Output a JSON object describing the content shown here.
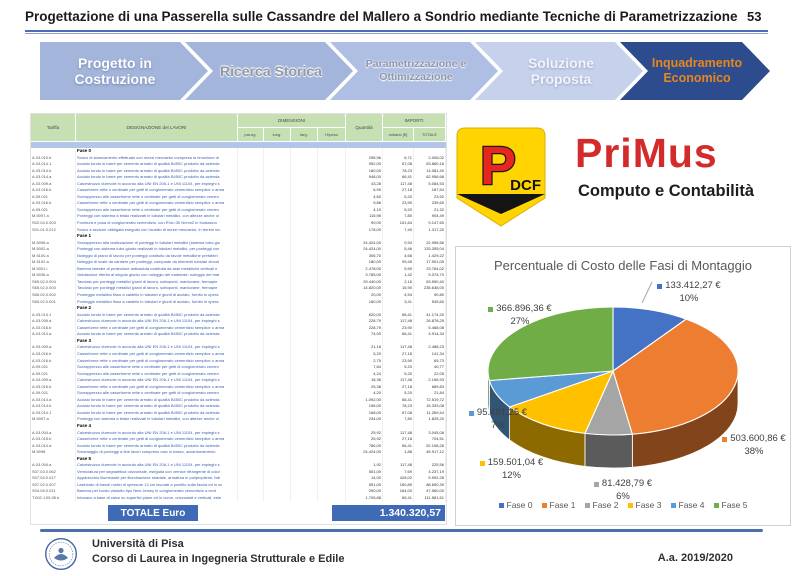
{
  "slide": {
    "title": "Progettazione di una Passerella sulle Cassandre del Mallero a Sondrio mediante Tecniche di Parametrizzazione",
    "page_number": "53",
    "footer": {
      "institution": "Università di Pisa",
      "course": "Corso di Laurea in Ingegneria Strutturale e Edile",
      "academic_year": "A.a. 2019/2020"
    }
  },
  "process_steps": [
    {
      "label": "Progetto in Costruzione"
    },
    {
      "label": "Ricerca Storica"
    },
    {
      "label": "Parametrizzazione e Ottimizzazione"
    },
    {
      "label": "Soluzione Proposta"
    },
    {
      "label": "Inquadramento Economico",
      "active": true
    }
  ],
  "primus": {
    "letter": "P",
    "badge": "DCF",
    "name": "PriMus",
    "tagline": "Computo e Contabilità"
  },
  "worksheet": {
    "columns": {
      "tariffa": "Tariffa",
      "designazione": "DESIGNAZIONE dei LAVORI",
      "dimensioni": "DIMENSIONI",
      "dim_sub": [
        "par.ug.",
        "lung.",
        "larg.",
        "H/peso"
      ],
      "quantita": "Quantità",
      "importi": "IMPORTI",
      "importi_sub": [
        "unitario [€]",
        "TOTALE"
      ]
    },
    "total_label": "TOTALE Euro",
    "total_value": "1.340.320,57",
    "rows": [
      "Fase 0",
      [
        "A.03.010.b",
        "Scavo di sbancamento effettuato con mezzi meccanici compresa la rimozione di",
        "298,96",
        "6,71",
        "2.006,02"
      ],
      [
        "A.03.014.1",
        "Acciaio tondo in barre per cemento armato di qualità B450C prodotto da azienda",
        "952,00",
        "67,08",
        "63.860,16"
      ],
      [
        "A.03.014.b",
        "Acciaio tondo in barre per cemento armato di qualità B450C prodotto da azienda",
        "180,00",
        "78,23",
        "14.081,40"
      ],
      [
        "A.03.014.a",
        "Acciaio tondo in barre per cemento armato di qualità B450C prodotto da azienda",
        "948,00",
        "66,41",
        "62.956,68"
      ],
      [
        "A.03.009.a",
        "Calcestruzzo durevole in accordo alla UNI EN 206-1 e UNI 11104, per impieghi s",
        "43,28",
        "117,48",
        "5.084,53"
      ],
      [
        "A.03.016.b",
        "Casseforme rette o centinate per getti di conglomerato cementizio semplice o arma",
        "6,90",
        "27,18",
        "187,54"
      ],
      [
        "A.09.021",
        "Sovrapprezzo alle casseforme rette o centinate per getti di conglomerato cemen",
        "4,60",
        "5,20",
        "23,92"
      ],
      [
        "A.03.016.b",
        "Casseforme rette o centinate per getti di conglomerato cementizio semplice o arma",
        "9,86",
        "23,90",
        "235,65"
      ],
      [
        "A.09.021",
        "Sovrapprezzo alle casseforme rette o centinate per getti di conglomerato cemen",
        "4,10",
        "5,20",
        "21,32"
      ],
      [
        "M.5097.a",
        "Ponteggi con sistema a telaio realizzati in tubolari metallici, con altezze anche ol",
        "115,96",
        "7,80",
        "904,49"
      ],
      [
        "S02.04.0.003",
        "Fornitura e posa di conglomerato cementizio, con R'ck=30 N/mm2 in fondazion",
        "90,00",
        "101,64",
        "9.147,60"
      ],
      [
        "S01.01.0.012",
        "Scavo a sezione obbligata eseguito con l'ausilio di mezzi meccanici, in terreni inc",
        "178,00",
        "7,40",
        "1.317,20"
      ],
      "Fase 1",
      [
        "M.5096.a",
        "Sovrapprezzo alla realizzazione di ponteggi in tubolari metallici (sistema tubo-giu",
        "24.424,00",
        "0,94",
        "22.958,56"
      ],
      [
        "M.5002.a",
        "Ponteggi con sistema tubo-giunto realizzati in tubolari metallici, per ponteggi con",
        "24.424,00",
        "5,46",
        "133.355,04"
      ],
      [
        "M.5100.a",
        "Noleggio di piano di lavoro per ponteggi costituito da tavole metalliche prefabbri",
        "306,70",
        "4,66",
        "1.429,22"
      ],
      [
        "M.5102.a",
        "Noleggio di scale da cantiere per ponteggi, composte da elementi tubolari zincat",
        "180,00",
        "99,45",
        "17.901,00"
      ],
      [
        "M.5001.i",
        "Barriera laterale di protezione anticaduta costituita da aste metalliche verticali e",
        "2.478,00",
        "9,59",
        "23.764,02"
      ],
      [
        "M.5036.a",
        "Valutazione riferita al singolo giunto con noleggio del materiale: noleggio del mat",
        "3.785,00",
        "1,42",
        "5.374,70"
      ],
      [
        "S65.02.0.004",
        "Tavolato per ponteggi metallici (piani di lavoro, sottoponti, mantovane, fermapie",
        "29.440,00",
        "2,16",
        "63.590,40"
      ],
      [
        "S65.02.0.003",
        "Tavolato per ponteggi metallici (piani di lavoro, sottoponti, mantovane, fermapie",
        "14.820,00",
        "15,90",
        "235.638,00"
      ],
      [
        "S65.02.0.002",
        "Ponteggio metallico fisso a castello in tubolari e giunti di acciaio, fornito in opera",
        "20,00",
        "4,54",
        "90,80"
      ],
      [
        "S65.02.0.001",
        "Ponteggio metallico fisso a castello in tubolari e giunti di acciaio, fornito in opera",
        "160,00",
        "3,41",
        "545,60"
      ],
      "Fase 2",
      [
        "A.03.014.1",
        "Acciaio tondo in barre per cemento armato di qualità B450C prodotto da azienda",
        "620,00",
        "66,41",
        "41.174,20"
      ],
      [
        "A.03.009.a",
        "Calcestruzzo durevole in accordo alla UNI EN 206-1 e UNI 11104, per impieghi s",
        "228,79",
        "117,48",
        "26.878,25"
      ],
      [
        "A.03.016.b",
        "Casseforme rette o centinate per getti di conglomerato cementizio semplice o arma",
        "228,79",
        "23,90",
        "5.468,08"
      ],
      [
        "A.03.014.a",
        "Acciaio tondo in barre per cemento armato di qualità B450C prodotto da azienda",
        "74,00",
        "66,41",
        "4.914,34"
      ],
      "Fase 3",
      [
        "A.03.009.a",
        "Calcestruzzo durevole in accordo alla UNI EN 206-1 e UNI 11104, per impieghi s",
        "21,18",
        "117,48",
        "2.488,23"
      ],
      [
        "A.03.016.b",
        "Casseforme rette o centinate per getti di conglomerato cementizio semplice o arma",
        "5,20",
        "27,18",
        "141,34"
      ],
      [
        "A.03.016.b",
        "Casseforme rette o centinate per getti di conglomerato cementizio semplice o arma",
        "2,75",
        "23,90",
        "65,73"
      ],
      [
        "A.09.021",
        "Sovrapprezzo alle casseforme rette o centinate per getti di conglomerato cemen",
        "7,84",
        "5,20",
        "40,77"
      ],
      [
        "A.09.021",
        "Sovrapprezzo alle casseforme rette o centinate per getti di conglomerato cemen",
        "4,24",
        "5,20",
        "22,05"
      ],
      [
        "A.03.009.a",
        "Calcestruzzo durevole in accordo alla UNI EN 206-1 e UNI 11104, per impieghi s",
        "18,36",
        "117,48",
        "2.156,93"
      ],
      [
        "A.03.016.b",
        "Casseforme rette o centinate per getti di conglomerato cementizio semplice o arma",
        "25,38",
        "27,18",
        "689,83"
      ],
      [
        "A.09.021",
        "Sovrapprezzo alle casseforme rette o centinate per getti di conglomerato cemen",
        "4,20",
        "5,20",
        "21,84"
      ],
      [
        "A.03.014.a",
        "Acciaio tondo in barre per cemento armato di qualità B450C prodotto da azienda",
        "1.092,00",
        "66,41",
        "72.519,72"
      ],
      [
        "A.03.014.b",
        "Acciaio tondo in barre per cemento armato di qualità B450C prodotto da azienda",
        "196,00",
        "78,23",
        "15.333,08"
      ],
      [
        "A.03.014.1",
        "Acciaio tondo in barre per cemento armato di qualità B450C prodotto da azienda",
        "168,00",
        "67,08",
        "11.269,44"
      ],
      [
        "M.5097.a",
        "Ponteggi con sistema a telaio realizzati in tubolari metallici, con altezze anche ol",
        "234,00",
        "7,80",
        "1.825,20"
      ],
      "Fase 4",
      [
        "A.03.004.a",
        "Calcestruzzo durevole in accordo alla UNI EN 206-1 e UNI 11104, per impieghi s",
        "25,92",
        "117,48",
        "3.045,08"
      ],
      [
        "A.03.015.b",
        "Casseforme rette o centinate per getti di conglomerato cementizio semplice o arma",
        "25,92",
        "27,18",
        "704,51"
      ],
      [
        "A.03.014.a",
        "Acciaio tondo in barre per cemento armato di qualità B450C prodotto da azienda",
        "786,00",
        "66,41",
        "52.198,26"
      ],
      [
        "M.5098",
        "Smontaggio di ponteggi a fine lavori compreso calo in basso, accantonamento",
        "24.424,00",
        "1,88",
        "45.917,12"
      ],
      "Fase 5",
      [
        "A.03.004.a",
        "Calcestruzzo durevole in accordo alla UNI EN 206-1 e UNI 11104, per impieghi s",
        "1,92",
        "117,48",
        "225,56"
      ],
      [
        "S07.03.0.062",
        "Verniciatura per segnaletica orizzontale, eseguita con vernice rifrangente di color",
        "551,00",
        "7,69",
        "4.237,19"
      ],
      [
        "S07.04.0.017",
        "Apparecchio illuminante per illuminazione stradale, armatura in polipropilene, fab",
        "14,00",
        "428,02",
        "5.992,28"
      ],
      [
        "S07.02.0.007",
        "Lastricato di basoli rustici di spessore 12 cm lavorati a puntillo sulla faccia ed in sc",
        "551,00",
        "160,89",
        "88.650,39"
      ],
      [
        "S04.05.0.011",
        "Barriera per bordo viadotto tipo New Jersey in conglomerato cementizio a vent",
        "290,00",
        "164,00",
        "47.560,00"
      ],
      [
        "T.002.J.05.05.b",
        "Intonaco a base di calce su superfici piane ed in curve, orizzontali e verticali, este",
        "1.705,88",
        "65,41",
        "111.581,61"
      ]
    ]
  },
  "chart_data": {
    "type": "pie",
    "style": "3d",
    "title": "Percentuale di Costo delle Fasi di Montaggio",
    "legend_position": "bottom",
    "categories": [
      "Fase 0",
      "Fase 1",
      "Fase 2",
      "Fase 3",
      "Fase 4",
      "Fase 5"
    ],
    "values": [
      133412.27,
      503600.86,
      81428.79,
      159501.04,
      95481.25,
      366896.36
    ],
    "labels": [
      "133.412,27 €",
      "503.600,86 €",
      "81.428,79 €",
      "159.501,04 €",
      "95.481,25 €",
      "366.896,36 €"
    ],
    "percents": [
      "10%",
      "38%",
      "6%",
      "12%",
      "7%",
      "27%"
    ],
    "colors": [
      "#4472c4",
      "#ed7d31",
      "#a5a5a5",
      "#ffc000",
      "#5b9bd5",
      "#70ad47"
    ],
    "total": 1340320.57
  }
}
